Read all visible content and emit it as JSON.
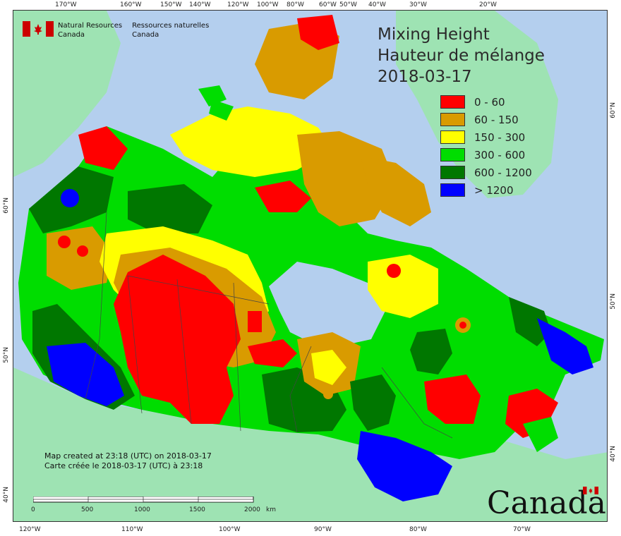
{
  "title": {
    "line1": "Mixing Height",
    "line2": "Hauteur de mélange",
    "line3": "2018-03-17"
  },
  "agency": {
    "en_line1": "Natural Resources",
    "en_line2": "Canada",
    "fr_line1": "Ressources naturelles",
    "fr_line2": "Canada"
  },
  "legend": [
    {
      "label": "0 - 60",
      "color": "#ff0000"
    },
    {
      "label": "60 - 150",
      "color": "#d99b00"
    },
    {
      "label": "150 - 300",
      "color": "#ffff00"
    },
    {
      "label": "300 - 600",
      "color": "#00dd00"
    },
    {
      "label": "600 - 1200",
      "color": "#007700"
    },
    {
      "label": "> 1200",
      "color": "#0000ff"
    }
  ],
  "credit": {
    "line1": "Map created at 23:18 (UTC) on 2018-03-17",
    "line2": "Carte créée le 2018-03-17 (UTC) à 23:18"
  },
  "scale": {
    "labels": [
      "0",
      "500",
      "1000",
      "1500",
      "2000"
    ],
    "unit": "km"
  },
  "wordmark": "Canada",
  "graticule": {
    "top": [
      "170°W",
      "160°W",
      "150°W",
      "140°W",
      "120°W",
      "100°W",
      "80°W",
      "60°W",
      "50°W",
      "40°W",
      "30°W",
      "20°W"
    ],
    "bottom": [
      "120°W",
      "110°W",
      "100°W",
      "90°W",
      "80°W",
      "70°W"
    ],
    "left": [
      "60°N",
      "50°N",
      "40°N"
    ],
    "right": [
      "60°N",
      "50°N",
      "40°N"
    ]
  },
  "colors": {
    "ocean": "#b4cfee",
    "land": "#9ee3b3"
  }
}
